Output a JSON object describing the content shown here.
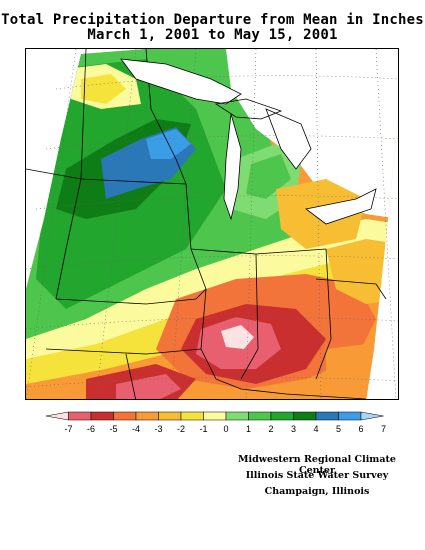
{
  "title": {
    "line1": "Total Precipitation Departure from Mean in Inches",
    "line2": "March 1, 2001 to May 15, 2001"
  },
  "legend": {
    "bins": [
      {
        "color": "#fbe3e3"
      },
      {
        "color": "#e8606f"
      },
      {
        "color": "#c92f2f"
      },
      {
        "color": "#f2743a"
      },
      {
        "color": "#f89a35"
      },
      {
        "color": "#f7be33"
      },
      {
        "color": "#f5e23a"
      },
      {
        "color": "#fbfb9e"
      },
      {
        "color": "#7fdc72"
      },
      {
        "color": "#4ec64e"
      },
      {
        "color": "#22a62d"
      },
      {
        "color": "#0f7d16"
      },
      {
        "color": "#2b78b8"
      },
      {
        "color": "#3a9ee6"
      },
      {
        "color": "#a8d6f5"
      }
    ],
    "labels": [
      "-7",
      "-6",
      "-5",
      "-4",
      "-3",
      "-2",
      "-1",
      "0",
      "1",
      "2",
      "3",
      "4",
      "5",
      "6",
      "7"
    ]
  },
  "credits": {
    "line1": "Midwestern Regional Climate Center",
    "line2": "Illinois State Water Survey",
    "line3": "Champaign, Illinois"
  }
}
